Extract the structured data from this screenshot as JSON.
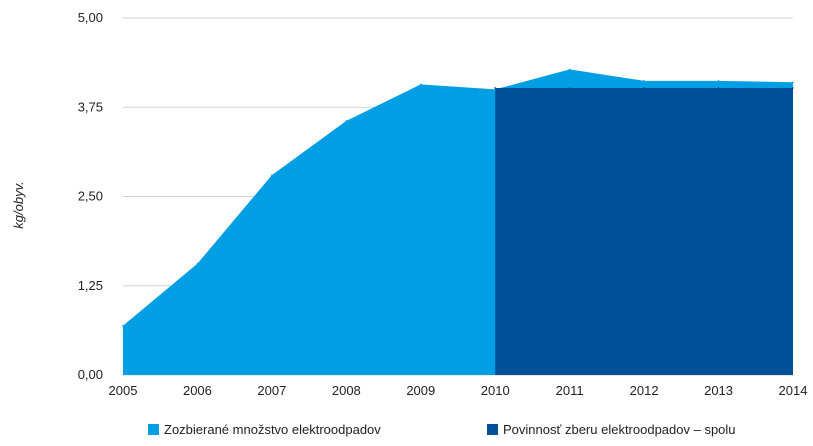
{
  "chart_data": {
    "type": "area",
    "x": [
      "2005",
      "2006",
      "2007",
      "2008",
      "2009",
      "2010",
      "2011",
      "2012",
      "2013",
      "2014"
    ],
    "ylabel": "kg/obyv.",
    "ylim": [
      0,
      5
    ],
    "yticks": [
      "0,00",
      "1,25",
      "2,50",
      "3,75",
      "5,00"
    ],
    "grid": true,
    "legend_position": "bottom",
    "series": [
      {
        "name": "Zozbierané množstvo elektroodpadov",
        "color": "#009fe3",
        "values": [
          0.69,
          1.56,
          2.8,
          3.56,
          4.07,
          4.0,
          4.28,
          4.12,
          4.12,
          4.1
        ]
      },
      {
        "name": "Povinnosť zberu elektroodpadov – spolu",
        "color": "#004f99",
        "values": [
          null,
          null,
          null,
          null,
          null,
          4.02,
          4.02,
          4.02,
          4.02,
          4.02
        ]
      }
    ]
  }
}
